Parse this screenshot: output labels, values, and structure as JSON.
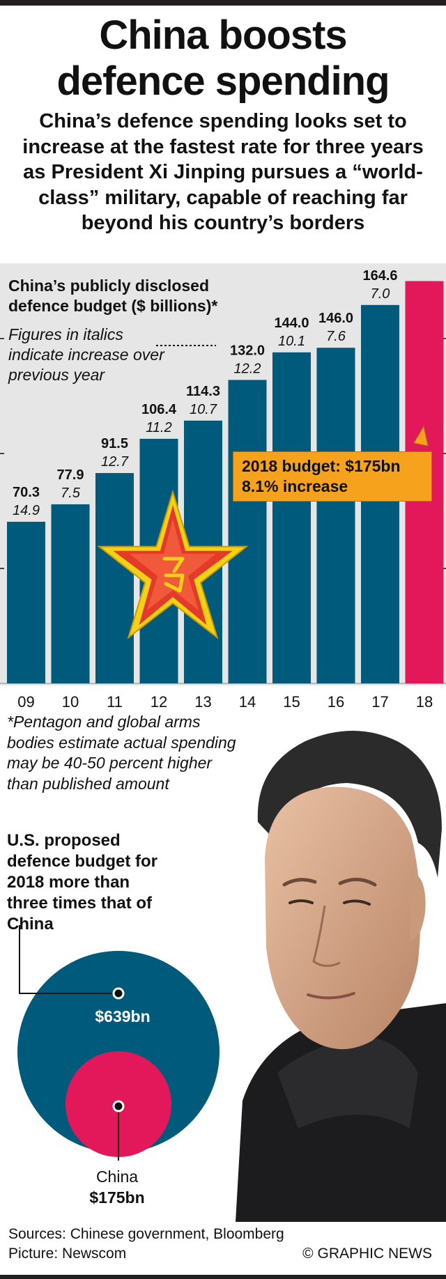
{
  "header": {
    "title_lines": [
      "China boosts",
      "defence spending"
    ],
    "subtitle": "China’s defence spending looks set to increase at the fastest rate for three years as President Xi Jinping pursues a “world-class” military, capable of reaching far beyond his country’s borders"
  },
  "chart_data": {
    "type": "bar",
    "title": "China’s publicly disclosed defence budget ($ billions)*",
    "note": "Figures in italics indicate increase over previous year",
    "categories": [
      "09",
      "10",
      "11",
      "12",
      "13",
      "14",
      "15",
      "16",
      "17",
      "18"
    ],
    "values": [
      70.3,
      77.9,
      91.5,
      106.4,
      114.3,
      132.0,
      144.0,
      146.0,
      164.6,
      175
    ],
    "value_labels": [
      "70.3",
      "77.9",
      "91.5",
      "106.4",
      "114.3",
      "132.0",
      "144.0",
      "146.0",
      "164.6",
      ""
    ],
    "increase_labels": [
      "14.9",
      "7.5",
      "12.7",
      "11.2",
      "10.7",
      "12.2",
      "10.1",
      "7.6",
      "7.0",
      ""
    ],
    "ylim": [
      0,
      180
    ],
    "colors": {
      "bar": "#005a7c",
      "highlight": "#e3185a"
    },
    "highlight_index": 9,
    "callout_lines": [
      "2018 budget: $175bn",
      "8.1% increase"
    ]
  },
  "footnote": "*Pentagon and global arms bodies estimate actual spending may be 40-50 percent higher than published amount",
  "comparison": {
    "text": "U.S. proposed defence budget for 2018 more than three times that of China",
    "us_value": 639,
    "us_label": "$639bn",
    "china_value": 175,
    "china_name": "China",
    "china_label": "$175bn",
    "colors": {
      "us": "#005a7c",
      "china": "#e3185a"
    }
  },
  "footer": {
    "sources": "Sources: Chinese government, Bloomberg",
    "picture": "Picture: Newscom",
    "credit": "© GRAPHIC NEWS"
  }
}
